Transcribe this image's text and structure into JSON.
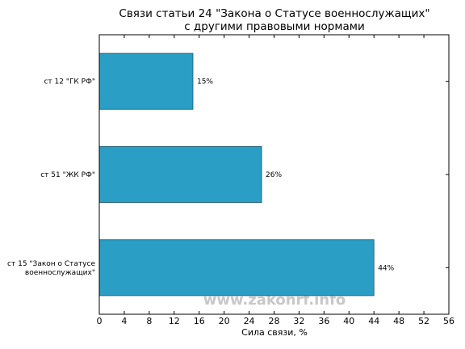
{
  "chart_data": {
    "type": "bar",
    "orientation": "horizontal",
    "title": "Связи статьи 24 \"Закона о Статусе военнослужащих\"\nс другими правовыми нормами",
    "categories": [
      "ст 12 \"ГК РФ\"",
      "ст 51 \"ЖК РФ\"",
      "ст 15 \"Закон о Статусе\nвоеннослужащих\""
    ],
    "values": [
      15,
      26,
      44
    ],
    "value_labels": [
      "15%",
      "26%",
      "44%"
    ],
    "color": "#2a9ec5",
    "xlabel": "Сила связи, %",
    "xlim": [
      0,
      56
    ],
    "xticks": [
      0,
      4,
      8,
      12,
      16,
      20,
      24,
      28,
      32,
      36,
      40,
      44,
      48,
      52,
      56
    ],
    "watermark": "www.zakonrf.info"
  }
}
